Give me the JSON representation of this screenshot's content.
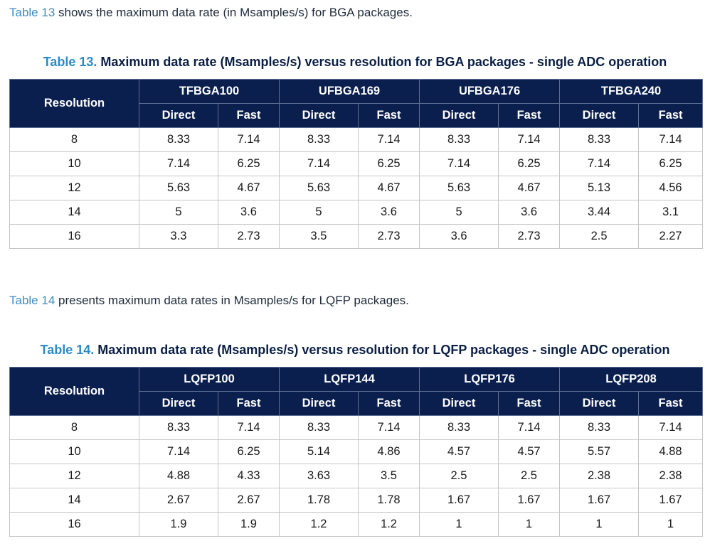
{
  "para1": {
    "ref": "Table 13",
    "text": " shows the maximum data rate (in Msamples/s) for BGA packages."
  },
  "table13": {
    "label": "Table 13.",
    "title": " Maximum data rate (Msamples/s) versus resolution for BGA packages - single ADC operation",
    "resolution_header": "Resolution",
    "packages": [
      "TFBGA100",
      "UFBGA169",
      "UFBGA176",
      "TFBGA240"
    ],
    "subheaders": [
      "Direct",
      "Fast"
    ],
    "rows": [
      [
        "8",
        "8.33",
        "7.14",
        "8.33",
        "7.14",
        "8.33",
        "7.14",
        "8.33",
        "7.14"
      ],
      [
        "10",
        "7.14",
        "6.25",
        "7.14",
        "6.25",
        "7.14",
        "6.25",
        "7.14",
        "6.25"
      ],
      [
        "12",
        "5.63",
        "4.67",
        "5.63",
        "4.67",
        "5.63",
        "4.67",
        "5.13",
        "4.56"
      ],
      [
        "14",
        "5",
        "3.6",
        "5",
        "3.6",
        "5",
        "3.6",
        "3.44",
        "3.1"
      ],
      [
        "16",
        "3.3",
        "2.73",
        "3.5",
        "2.73",
        "3.6",
        "2.73",
        "2.5",
        "2.27"
      ]
    ]
  },
  "para2": {
    "ref": "Table 14",
    "text": " presents maximum data rates in Msamples/s for LQFP packages."
  },
  "table14": {
    "label": "Table 14.",
    "title": " Maximum data rate (Msamples/s) versus resolution for LQFP packages - single ADC operation",
    "resolution_header": "Resolution",
    "packages": [
      "LQFP100",
      "LQFP144",
      "LQFP176",
      "LQFP208"
    ],
    "subheaders": [
      "Direct",
      "Fast"
    ],
    "rows": [
      [
        "8",
        "8.33",
        "7.14",
        "8.33",
        "7.14",
        "8.33",
        "7.14",
        "8.33",
        "7.14"
      ],
      [
        "10",
        "7.14",
        "6.25",
        "5.14",
        "4.86",
        "4.57",
        "4.57",
        "5.57",
        "4.88"
      ],
      [
        "12",
        "4.88",
        "4.33",
        "3.63",
        "3.5",
        "2.5",
        "2.5",
        "2.38",
        "2.38"
      ],
      [
        "14",
        "2.67",
        "2.67",
        "1.78",
        "1.78",
        "1.67",
        "1.67",
        "1.67",
        "1.67"
      ],
      [
        "16",
        "1.9",
        "1.9",
        "1.2",
        "1.2",
        "1",
        "1",
        "1",
        "1"
      ]
    ]
  }
}
